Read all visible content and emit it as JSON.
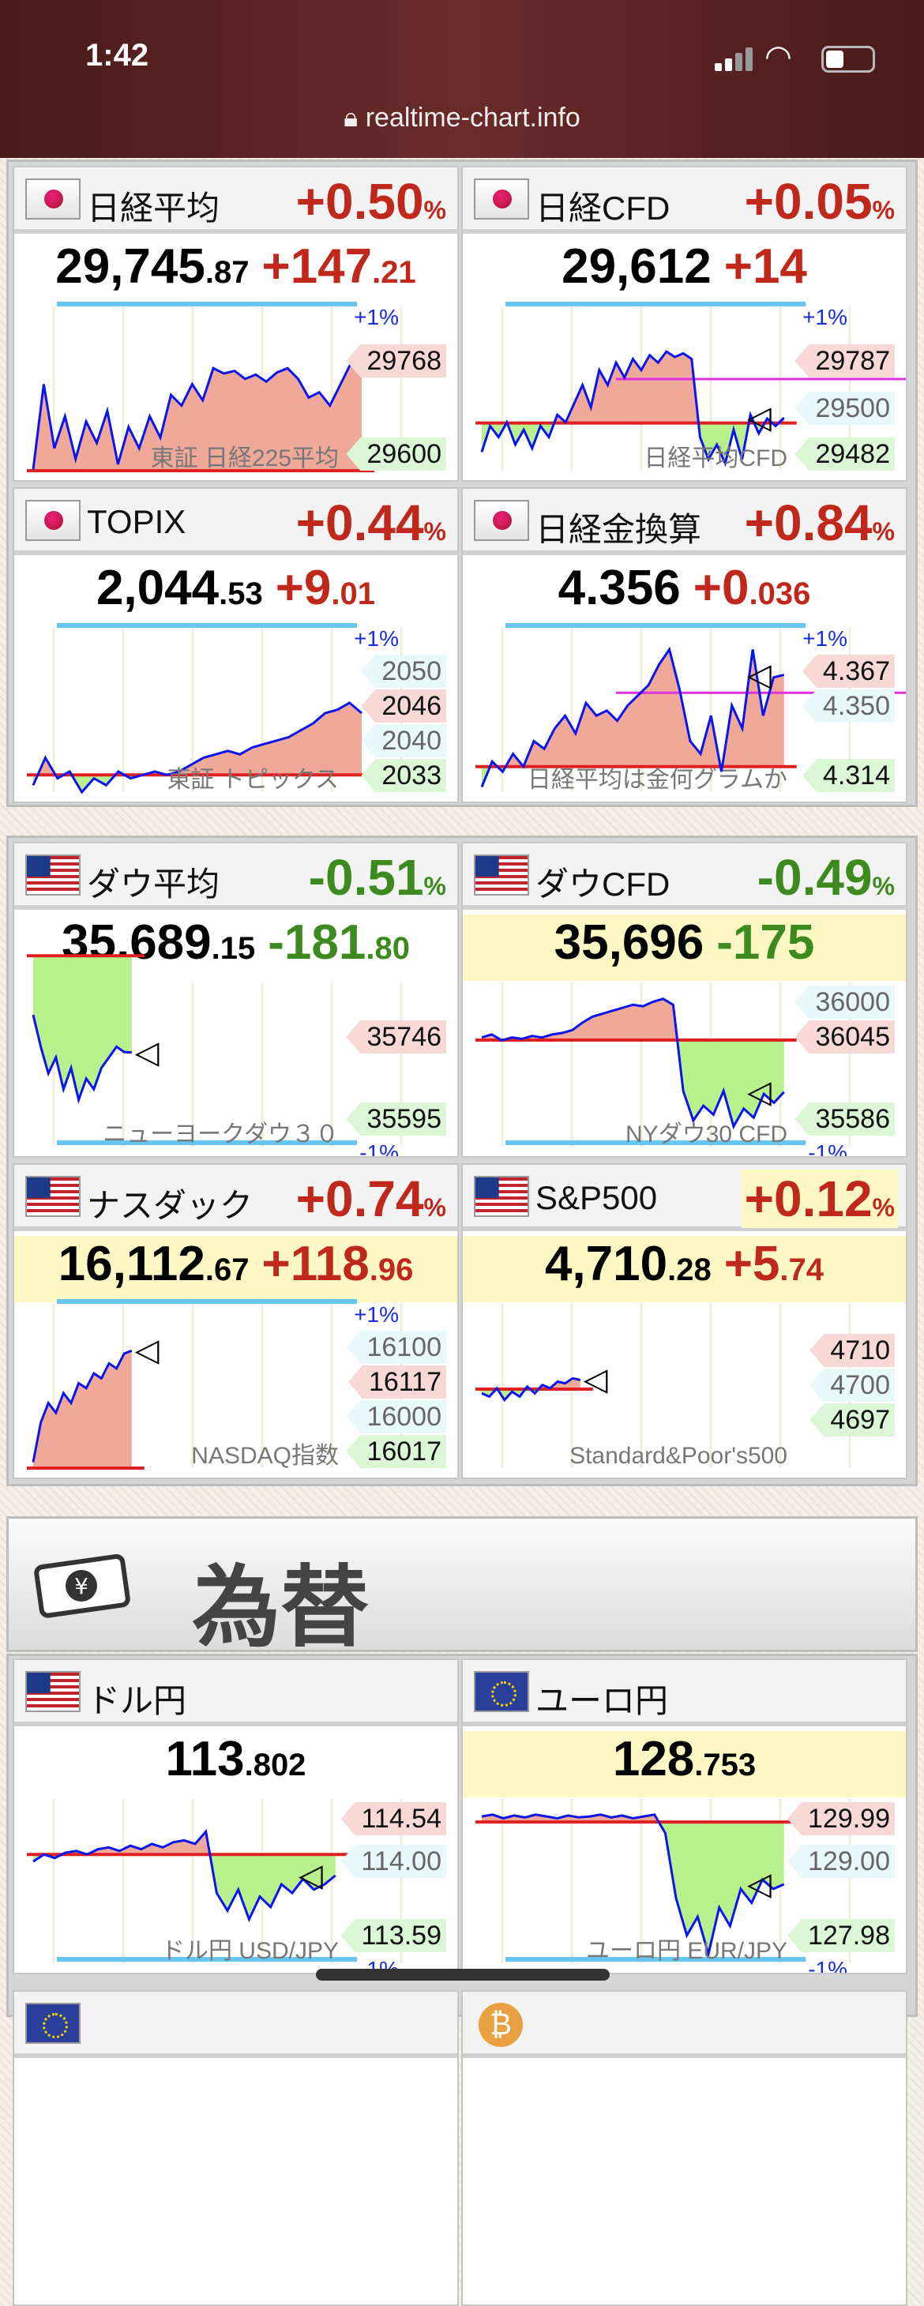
{
  "status_bar": {
    "time": "1:42",
    "url": "realtime-chart.info",
    "icons": [
      "signal-icon",
      "wifi-icon",
      "battery-icon",
      "lock-icon"
    ]
  },
  "colors": {
    "up": "#c0281c",
    "down": "#3d8a1e",
    "line": "#0a14f0",
    "fill_up": "#f0a898",
    "fill_down": "#b8f08c",
    "baseline": "#e02020",
    "ref_line": "#e030e0",
    "pct_line": "#66c6f2"
  },
  "fx_section": {
    "title": "為替",
    "icon": "money-icon"
  },
  "cards": [
    {
      "id": "nikkei",
      "flag": "jp",
      "title": "日経平均",
      "pct": "+0.50",
      "pct_unit": "%",
      "price_int": "29,745",
      "price_dec": ".87",
      "chg_int": "+147",
      "chg_dec": ".21",
      "dir": "up",
      "pct_mark": "+1%",
      "pct_mark_pos": "top",
      "high": "29768",
      "low": "29600",
      "watermark": "東証 日経225平均",
      "ylim": [
        29598,
        29894
      ],
      "baseline": 29598,
      "session_elapsed": 1.0,
      "arrow": false,
      "series": [
        29600,
        29760,
        29640,
        29700,
        29620,
        29690,
        29650,
        29710,
        29610,
        29680,
        29640,
        29700,
        29660,
        29740,
        29720,
        29760,
        29730,
        29790,
        29780,
        29785,
        29770,
        29778,
        29765,
        29782,
        29790,
        29770,
        29735,
        29745,
        29720,
        29760,
        29800,
        29785
      ]
    },
    {
      "id": "nikkei-cfd",
      "flag": "jp",
      "title": "日経CFD",
      "pct": "+0.05",
      "pct_unit": "%",
      "price_int": "29,612",
      "price_dec": "",
      "chg_int": "+14",
      "chg_dec": "",
      "dir": "up",
      "pct_mark": "+1%",
      "pct_mark_pos": "top",
      "high": "29787",
      "low": "29482",
      "mid": "29500",
      "watermark": "日経平均CFD",
      "ylim": [
        29470,
        29894
      ],
      "baseline": 29598,
      "ref_level": 29716,
      "session_elapsed": 0.92,
      "arrow": true,
      "series": [
        29520,
        29590,
        29560,
        29600,
        29540,
        29580,
        29530,
        29590,
        29560,
        29620,
        29600,
        29650,
        29700,
        29640,
        29740,
        29700,
        29760,
        29720,
        29770,
        29740,
        29780,
        29760,
        29790,
        29775,
        29785,
        29770,
        29560,
        29500,
        29540,
        29490,
        29580,
        29500,
        29620,
        29570,
        29610,
        29590,
        29612
      ]
    },
    {
      "id": "topix",
      "flag": "jp",
      "title": "TOPIX",
      "pct": "+0.44",
      "pct_unit": "%",
      "price_int": "2,044",
      "price_dec": ".53",
      "chg_int": "+9",
      "chg_dec": ".01",
      "dir": "up",
      "pct_mark": "+1%",
      "pct_mark_pos": "top",
      "high": "2046",
      "low": "2033",
      "mid_high": "2050",
      "mid": "2040",
      "watermark": "東証 トピックス",
      "ylim": [
        2033,
        2056
      ],
      "baseline": 2035.5,
      "session_elapsed": 1.0,
      "arrow": false,
      "series": [
        2034,
        2038,
        2035,
        2036,
        2033,
        2035,
        2034,
        2036,
        2035,
        2035.5,
        2036,
        2035.5,
        2036,
        2037,
        2038,
        2038.5,
        2039,
        2038.5,
        2039.5,
        2040,
        2040.5,
        2041,
        2042,
        2043,
        2044.5,
        2045,
        2046,
        2044.5
      ]
    },
    {
      "id": "nikkei-gold",
      "flag": "jp",
      "title": "日経金換算",
      "pct": "+0.84",
      "pct_unit": "%",
      "price_int": "4.356",
      "price_dec": "",
      "chg_int": "+0",
      "chg_dec": ".036",
      "dir": "up",
      "pct_mark": "+1%",
      "pct_mark_pos": "top",
      "high": "4.367",
      "low": "4.314",
      "mid": "4.350",
      "watermark": "日経平均は金何グラムか",
      "ylim": [
        4.31,
        4.372
      ],
      "baseline": 4.32,
      "ref_level": 4.349,
      "session_elapsed": 0.92,
      "arrow": true,
      "series": [
        4.312,
        4.322,
        4.318,
        4.325,
        4.32,
        4.33,
        4.327,
        4.335,
        4.34,
        4.333,
        4.345,
        4.34,
        4.342,
        4.338,
        4.344,
        4.348,
        4.352,
        4.36,
        4.366,
        4.35,
        4.33,
        4.325,
        4.34,
        4.318,
        4.344,
        4.335,
        4.366,
        4.34,
        4.355,
        4.356
      ]
    },
    {
      "id": "dow",
      "flag": "us",
      "title": "ダウ平均",
      "pct": "-0.51",
      "pct_unit": "%",
      "price_int": "35,689",
      "price_dec": ".15",
      "chg_int": "-181",
      "chg_dec": ".80",
      "dir": "dn",
      "pct_mark": "-1%",
      "pct_mark_pos": "bottom",
      "high": "35746",
      "low": "35595",
      "watermark": "ニューヨークダウ３０",
      "ylim": [
        35512,
        35809
      ],
      "baseline": 35871,
      "session_elapsed": 0.3,
      "arrow": true,
      "series": [
        35760,
        35700,
        35650,
        35680,
        35620,
        35660,
        35600,
        35640,
        35620,
        35660,
        35680,
        35700,
        35690,
        35689
      ]
    },
    {
      "id": "dow-cfd",
      "flag": "us",
      "title": "ダウCFD",
      "pct": "-0.49",
      "pct_unit": "%",
      "price_int": "35,696",
      "price_dec": "",
      "chg_int": "-175",
      "chg_dec": "",
      "dir": "dn",
      "highlight": true,
      "pct_mark": "-1%",
      "pct_mark_pos": "bottom",
      "high": "36045",
      "low": "35586",
      "mid_high": "36000",
      "watermark": "NYダウ30 CFD",
      "ylim": [
        35512,
        36044
      ],
      "baseline": 35871,
      "session_elapsed": 0.92,
      "arrow": true,
      "series": [
        35880,
        35890,
        35870,
        35880,
        35875,
        35885,
        35880,
        35890,
        35895,
        35905,
        35930,
        35950,
        35960,
        35970,
        35980,
        35990,
        35985,
        36000,
        36010,
        35990,
        35700,
        35600,
        35650,
        35620,
        35700,
        35580,
        35640,
        35610,
        35690,
        35660,
        35696
      ]
    },
    {
      "id": "nasdaq",
      "flag": "us",
      "title": "ナスダック",
      "pct": "+0.74",
      "pct_unit": "%",
      "price_int": "16,112",
      "price_dec": ".67",
      "chg_int": "+118",
      "chg_dec": ".96",
      "dir": "up",
      "highlight": true,
      "pct_mark": "+1%",
      "pct_mark_pos": "top",
      "high": "16117",
      "low": "16017",
      "mid_high": "16100",
      "mid": "16000",
      "watermark": "NASDAQ指数",
      "ylim": [
        15994,
        16154
      ],
      "baseline": 15994,
      "session_elapsed": 0.3,
      "arrow": true,
      "series": [
        16000,
        16040,
        16060,
        16050,
        16070,
        16060,
        16080,
        16075,
        16090,
        16085,
        16100,
        16095,
        16110,
        16113
      ]
    },
    {
      "id": "sp500",
      "flag": "us",
      "title": "S&P500",
      "pct": "+0.12",
      "pct_unit": "%",
      "pct_highlight": true,
      "price_int": "4,710",
      "price_dec": ".28",
      "chg_int": "+5",
      "chg_dec": ".74",
      "dir": "up",
      "highlight": true,
      "pct_mark": "",
      "high": "4710",
      "low": "4697",
      "mid": "4700",
      "watermark": "Standard&Poor's500",
      "ylim": [
        4657,
        4752
      ],
      "baseline": 4704.5,
      "session_elapsed": 0.3,
      "arrow": true,
      "series": [
        4702,
        4700,
        4705,
        4698,
        4703,
        4700,
        4706,
        4702,
        4707,
        4705,
        4709,
        4708,
        4711,
        4710
      ]
    },
    {
      "id": "usdjpy",
      "flag": "us",
      "title": "ドル円",
      "pct": "",
      "price_int": "113",
      "price_dec": ".802",
      "chg_int": "",
      "chg_dec": "",
      "dir": "dn",
      "pct_mark": "-1%",
      "pct_mark_pos": "bottom",
      "high": "114.54",
      "low": "113.59",
      "mid": "114.00",
      "watermark": "ドル円 USD/JPY",
      "ylim": [
        113.3,
        114.2
      ],
      "baseline": 113.92,
      "session_elapsed": 0.92,
      "arrow": true,
      "series": [
        113.88,
        113.92,
        113.9,
        113.93,
        113.94,
        113.92,
        113.95,
        113.96,
        113.94,
        113.97,
        113.95,
        113.98,
        113.96,
        113.99,
        114.0,
        113.98,
        114.05,
        113.7,
        113.6,
        113.72,
        113.55,
        113.68,
        113.62,
        113.75,
        113.7,
        113.78,
        113.72,
        113.75,
        113.8
      ]
    },
    {
      "id": "eurjpy",
      "flag": "eu",
      "title": "ユーロ円",
      "pct": "",
      "price_int": "128",
      "price_dec": ".753",
      "chg_int": "",
      "chg_dec": "",
      "dir": "dn",
      "highlight": true,
      "pct_mark": "-1%",
      "pct_mark_pos": "bottom",
      "high": "129.99",
      "low": "127.98",
      "mid": "129.00",
      "watermark": "ユーロ円 EUR/JPY",
      "ylim": [
        127.9,
        129.6
      ],
      "baseline": 129.42,
      "session_elapsed": 0.92,
      "arrow": true,
      "series": [
        129.48,
        129.5,
        129.46,
        129.49,
        129.47,
        129.5,
        129.48,
        129.46,
        129.49,
        129.47,
        129.48,
        129.5,
        129.47,
        129.49,
        129.46,
        129.48,
        129.5,
        129.3,
        128.6,
        128.2,
        128.4,
        128.0,
        128.5,
        128.3,
        128.7,
        128.55,
        128.8,
        128.7,
        128.75
      ]
    }
  ],
  "partial_cards": [
    {
      "flag": "eu"
    },
    {
      "flag": "btc"
    }
  ]
}
